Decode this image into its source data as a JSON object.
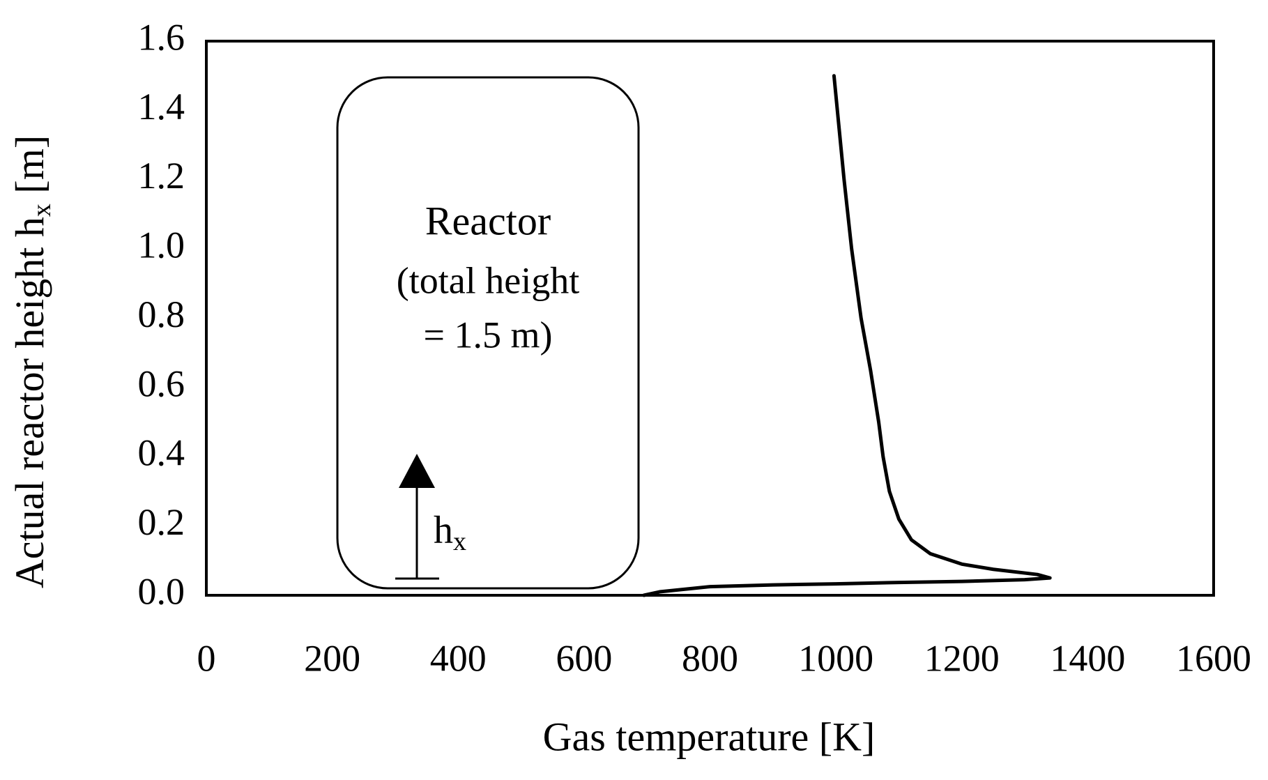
{
  "chart_data": {
    "type": "line",
    "xlabel": "Gas temperature [K]",
    "ylabel": "Actual reactor height h",
    "ylabel_sub": "x",
    "ylabel_end": " [m]",
    "annotations": [
      "Reactor",
      "(total height",
      "= 1.5 m)"
    ],
    "arrow_label": "h",
    "arrow_label_sub": "x",
    "x": [
      695,
      720,
      800,
      900,
      1000,
      1100,
      1200,
      1300,
      1340,
      1320,
      1250,
      1200,
      1150,
      1120,
      1100,
      1085,
      1075,
      1068,
      1055,
      1040,
      1025,
      1013,
      1005,
      997
    ],
    "values": [
      0.0,
      0.01,
      0.025,
      0.03,
      0.033,
      0.037,
      0.04,
      0.045,
      0.05,
      0.06,
      0.075,
      0.09,
      0.12,
      0.16,
      0.22,
      0.3,
      0.4,
      0.5,
      0.65,
      0.8,
      1.0,
      1.2,
      1.35,
      1.5
    ],
    "color": "#000000",
    "xlim": [
      0,
      1600
    ],
    "xticks": [
      0,
      200,
      400,
      600,
      800,
      1000,
      1200,
      1400,
      1600
    ],
    "ylim": [
      0,
      1.6
    ],
    "yticks": [
      {
        "value": 0,
        "label": "0.0"
      },
      0.2,
      0.4,
      0.6,
      0.8,
      {
        "value": 1,
        "label": "1.0"
      },
      1.2,
      1.4,
      1.6
    ],
    "grid": false
  }
}
